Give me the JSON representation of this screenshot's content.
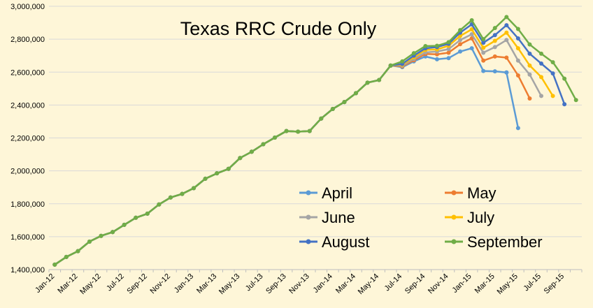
{
  "chart_data": {
    "type": "line",
    "title": "Texas RRC Crude Only",
    "x_labels": [
      "Jan-12",
      "Mar-12",
      "May-12",
      "Jul-12",
      "Sep-12",
      "Nov-12",
      "Jan-13",
      "Mar-13",
      "May-13",
      "Jul-13",
      "Sep-13",
      "Nov-13",
      "Jan-14",
      "Mar-14",
      "May-14",
      "Jul-14",
      "Sep-14",
      "Nov-14",
      "Jan-15",
      "Mar-15",
      "May-15",
      "Jul-15",
      "Sep-15"
    ],
    "ylim": [
      1400000,
      3000000
    ],
    "y_ticks": [
      {
        "value": 1400000,
        "label": "1,400,000"
      },
      {
        "value": 1600000,
        "label": "1,600,000"
      },
      {
        "value": 1800000,
        "label": "1,800,000"
      },
      {
        "value": 2000000,
        "label": "2,000,000"
      },
      {
        "value": 2200000,
        "label": "2,200,000"
      },
      {
        "value": 2400000,
        "label": "2,400,000"
      },
      {
        "value": 2600000,
        "label": "2,600,000"
      },
      {
        "value": 2800000,
        "label": "2,800,000"
      },
      {
        "value": 3000000,
        "label": "3,000,000"
      }
    ],
    "grid": true,
    "legend_position": "bottom-right-inside",
    "base_months": [
      "Jan-12",
      "Feb-12",
      "Mar-12",
      "Apr-12",
      "May-12",
      "Jun-12",
      "Jul-12",
      "Aug-12",
      "Sep-12",
      "Oct-12",
      "Nov-12",
      "Dec-12",
      "Jan-13",
      "Feb-13",
      "Mar-13",
      "Apr-13",
      "May-13",
      "Jun-13",
      "Jul-13",
      "Aug-13",
      "Sep-13",
      "Oct-13",
      "Nov-13",
      "Dec-13",
      "Jan-14",
      "Feb-14",
      "Mar-14",
      "Apr-14",
      "May-14",
      "Jun-14"
    ],
    "base_values": [
      1430000,
      1477000,
      1512000,
      1570000,
      1605000,
      1628000,
      1672000,
      1715000,
      1740000,
      1796000,
      1838000,
      1860000,
      1895000,
      1952000,
      1985000,
      2012000,
      2078000,
      2116000,
      2162000,
      2202000,
      2242000,
      2238000,
      2242000,
      2318000,
      2376000,
      2418000,
      2472000,
      2536000,
      2552000,
      2640000
    ],
    "series": [
      {
        "name": "April",
        "color": "#5B9BD5",
        "months": [
          "Jul-14",
          "Aug-14",
          "Sep-14",
          "Oct-14",
          "Nov-14",
          "Dec-14",
          "Jan-15",
          "Feb-15",
          "Mar-15",
          "Apr-15"
        ],
        "values": [
          2630000,
          2665000,
          2695000,
          2678000,
          2685000,
          2725000,
          2745000,
          2607000,
          2605000,
          2598000
        ]
      },
      {
        "name": "April",
        "color": "#5B9BD5",
        "months": [
          "Apr-15",
          "May-15"
        ],
        "values": [
          2598000,
          2260000
        ]
      },
      {
        "name": "May",
        "color": "#ED7D31",
        "months": [
          "Jul-14",
          "Aug-14",
          "Sep-14",
          "Oct-14",
          "Nov-14",
          "Dec-14",
          "Jan-15",
          "Feb-15",
          "Mar-15",
          "Apr-15",
          "May-15",
          "Jun-15"
        ],
        "values": [
          2635000,
          2672000,
          2710000,
          2708000,
          2718000,
          2770000,
          2805000,
          2670000,
          2695000,
          2688000,
          2580000,
          2440000
        ]
      },
      {
        "name": "June",
        "color": "#A5A5A5",
        "months": [
          "Jul-14",
          "Aug-14",
          "Sep-14",
          "Oct-14",
          "Nov-14",
          "Dec-14",
          "Jan-15",
          "Feb-15",
          "Mar-15",
          "Apr-15",
          "May-15",
          "Jun-15",
          "Jul-15"
        ],
        "values": [
          2640000,
          2680000,
          2720000,
          2725000,
          2740000,
          2795000,
          2830000,
          2718000,
          2752000,
          2795000,
          2670000,
          2585000,
          2455000
        ]
      },
      {
        "name": "July",
        "color": "#FFC000",
        "months": [
          "Jul-14",
          "Aug-14",
          "Sep-14",
          "Oct-14",
          "Nov-14",
          "Dec-14",
          "Jan-15",
          "Feb-15",
          "Mar-15",
          "Apr-15",
          "May-15",
          "Jun-15",
          "Jul-15",
          "Aug-15"
        ],
        "values": [
          2645000,
          2690000,
          2735000,
          2738000,
          2760000,
          2820000,
          2860000,
          2748000,
          2790000,
          2840000,
          2745000,
          2640000,
          2570000,
          2455000
        ]
      },
      {
        "name": "August",
        "color": "#4472C4",
        "months": [
          "Jul-14",
          "Aug-14",
          "Sep-14",
          "Oct-14",
          "Nov-14",
          "Dec-14",
          "Jan-15",
          "Feb-15",
          "Mar-15",
          "Apr-15",
          "May-15",
          "Jun-15",
          "Jul-15",
          "Aug-15",
          "Sep-15"
        ],
        "values": [
          2650000,
          2700000,
          2745000,
          2752000,
          2772000,
          2840000,
          2890000,
          2778000,
          2825000,
          2885000,
          2805000,
          2712000,
          2652000,
          2592000,
          2405000
        ]
      },
      {
        "name": "September",
        "color": "#70AD47",
        "months": [
          "Jul-14",
          "Aug-14",
          "Sep-14",
          "Oct-14",
          "Nov-14",
          "Dec-14",
          "Jan-15",
          "Feb-15",
          "Mar-15",
          "Apr-15",
          "May-15",
          "Jun-15",
          "Jul-15",
          "Aug-15",
          "Sep-15",
          "Oct-15"
        ],
        "values": [
          2665000,
          2715000,
          2758000,
          2760000,
          2782000,
          2855000,
          2915000,
          2800000,
          2868000,
          2935000,
          2862000,
          2768000,
          2712000,
          2660000,
          2560000,
          2430000
        ]
      }
    ],
    "legend": [
      {
        "name": "April",
        "color": "#5B9BD5"
      },
      {
        "name": "May",
        "color": "#ED7D31"
      },
      {
        "name": "June",
        "color": "#A5A5A5"
      },
      {
        "name": "July",
        "color": "#FFC000"
      },
      {
        "name": "August",
        "color": "#4472C4"
      },
      {
        "name": "September",
        "color": "#70AD47"
      }
    ]
  }
}
